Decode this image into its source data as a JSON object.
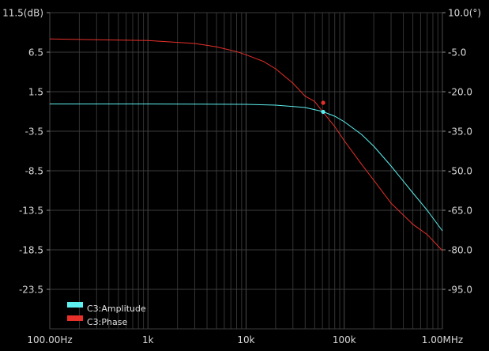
{
  "chart_data": {
    "type": "line",
    "x_scale": "log",
    "x_range_hz": [
      100,
      1000000
    ],
    "x_ticks": [
      {
        "value": 100,
        "label": "100.00Hz"
      },
      {
        "value": 1000,
        "label": "1k"
      },
      {
        "value": 10000,
        "label": "10k"
      },
      {
        "value": 100000,
        "label": "100k"
      },
      {
        "value": 1000000,
        "label": "1.00MHz"
      }
    ],
    "y_left": {
      "range": [
        -28.5,
        11.5
      ],
      "ticks": [
        {
          "value": 11.5,
          "label": "11.5(dB)"
        },
        {
          "value": 6.5,
          "label": "6.5"
        },
        {
          "value": 1.5,
          "label": "1.5"
        },
        {
          "value": -3.5,
          "label": "-3.5"
        },
        {
          "value": -8.5,
          "label": "-8.5"
        },
        {
          "value": -13.5,
          "label": "-13.5"
        },
        {
          "value": -18.5,
          "label": "-18.5"
        },
        {
          "value": -23.5,
          "label": "-23.5"
        }
      ]
    },
    "y_right": {
      "range": [
        -110,
        10
      ],
      "ticks": [
        {
          "value": 10,
          "label": "10.0(°)"
        },
        {
          "value": -5,
          "label": "-5.0"
        },
        {
          "value": -20,
          "label": "-20.0"
        },
        {
          "value": -35,
          "label": "-35.0"
        },
        {
          "value": -50,
          "label": "-50.0"
        },
        {
          "value": -65,
          "label": "-65.0"
        },
        {
          "value": -80,
          "label": "-80.0"
        },
        {
          "value": -95,
          "label": "-95.0"
        }
      ]
    },
    "grid": true,
    "legend_position": "bottom-left",
    "series": [
      {
        "name": "C3:Amplitude",
        "axis": "left",
        "color": "#5ef0f0",
        "x": [
          100,
          1000,
          10000,
          20000,
          40000,
          60000,
          80000,
          100000,
          150000,
          200000,
          300000,
          500000,
          700000,
          1000000
        ],
        "y": [
          -0.05,
          -0.05,
          -0.1,
          -0.2,
          -0.5,
          -1.0,
          -1.6,
          -2.3,
          -3.9,
          -5.4,
          -7.9,
          -11.3,
          -13.5,
          -16.1
        ],
        "marker": {
          "x": 61000,
          "y": -1.05
        }
      },
      {
        "name": "C3:Phase",
        "axis": "right",
        "color": "#e8302a",
        "x": [
          100,
          1000,
          3000,
          5000,
          8000,
          10000,
          15000,
          20000,
          30000,
          40000,
          50000,
          60000,
          80000,
          100000,
          150000,
          200000,
          300000,
          500000,
          700000,
          1000000
        ],
        "y": [
          0,
          -0.6,
          -1.7,
          -3.0,
          -4.8,
          -6.0,
          -8.5,
          -11.3,
          -16.8,
          -21.7,
          -23.7,
          -27.5,
          -33.2,
          -38.6,
          -47.5,
          -53.6,
          -62.3,
          -70.3,
          -74.2,
          -80.3
        ],
        "marker": {
          "x": 61000,
          "y": -24.2
        }
      }
    ]
  }
}
